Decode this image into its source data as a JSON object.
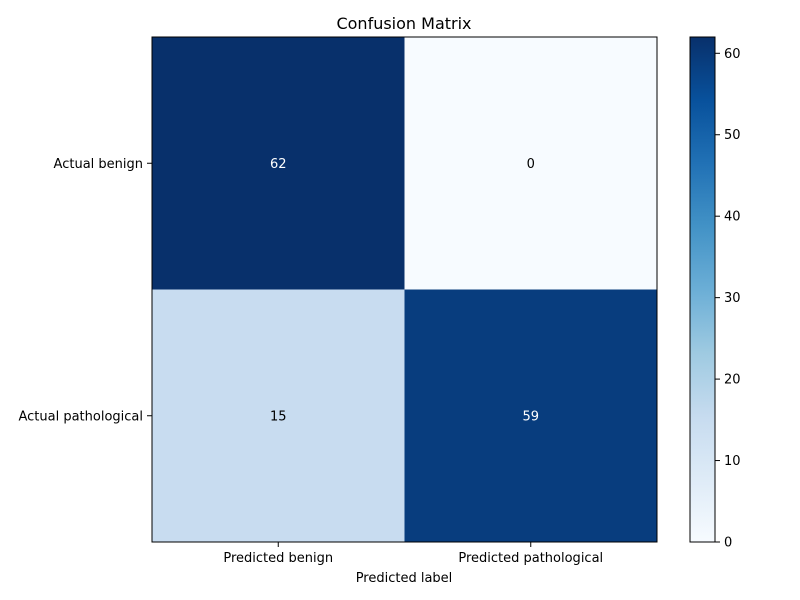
{
  "chart_data": {
    "type": "heatmap",
    "title": "Confusion Matrix",
    "xlabel": "Predicted label",
    "ylabel": "",
    "x_categories": [
      "Predicted benign",
      "Predicted pathological"
    ],
    "y_categories": [
      "Actual benign",
      "Actual pathological"
    ],
    "values": [
      [
        62,
        0
      ],
      [
        15,
        59
      ]
    ],
    "colormap": "Blues",
    "colorbar": {
      "min": 0,
      "max": 62,
      "ticks": [
        0,
        10,
        20,
        30,
        40,
        50,
        60
      ]
    },
    "grid": false,
    "text_color_dark_cells": "#ffffff",
    "text_color_light_cells": "#000000"
  }
}
